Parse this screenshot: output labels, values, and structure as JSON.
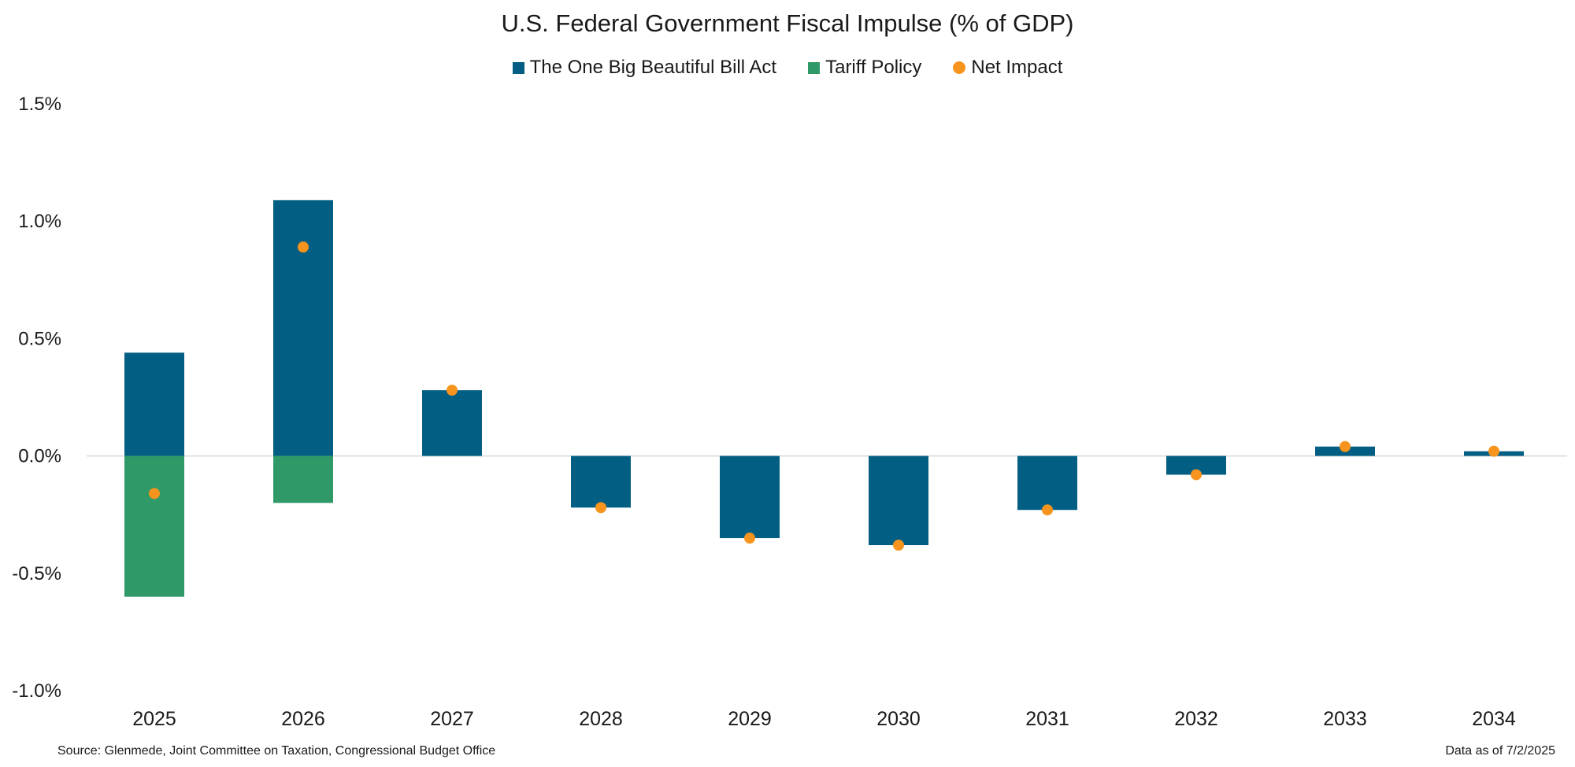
{
  "chart_data": {
    "type": "bar",
    "title": "U.S. Federal Government Fiscal Impulse (% of GDP)",
    "categories": [
      "2025",
      "2026",
      "2027",
      "2028",
      "2029",
      "2030",
      "2031",
      "2032",
      "2033",
      "2034"
    ],
    "series": [
      {
        "name": "The One Big Beautiful Bill Act",
        "kind": "bar",
        "color": "#035e83",
        "values": [
          0.44,
          1.09,
          0.28,
          -0.22,
          -0.35,
          -0.38,
          -0.23,
          -0.08,
          0.04,
          0.02
        ]
      },
      {
        "name": "Tariff Policy",
        "kind": "bar",
        "color": "#2f9a68",
        "values": [
          -0.6,
          -0.2,
          0,
          0,
          0,
          0,
          0,
          0,
          0,
          0
        ]
      },
      {
        "name": "Net Impact",
        "kind": "scatter",
        "color": "#f7941d",
        "values": [
          -0.16,
          0.89,
          0.28,
          -0.22,
          -0.35,
          -0.38,
          -0.23,
          -0.08,
          0.04,
          0.02
        ]
      }
    ],
    "ylim": [
      -1.0,
      1.5
    ],
    "yticks": [
      1.5,
      1.0,
      0.5,
      0.0,
      -0.5,
      -1.0
    ],
    "ytick_labels": [
      "1.5%",
      "1.0%",
      "0.5%",
      "0.0%",
      "-0.5%",
      "-1.0%"
    ],
    "xlabel": "",
    "ylabel": "",
    "grid": false,
    "stacked": true,
    "legend_position": "top-center"
  },
  "footer": {
    "source": "Source: Glenmede, Joint Committee on Taxation, Congressional Budget Office",
    "date": "Data as of 7/2/2025"
  }
}
